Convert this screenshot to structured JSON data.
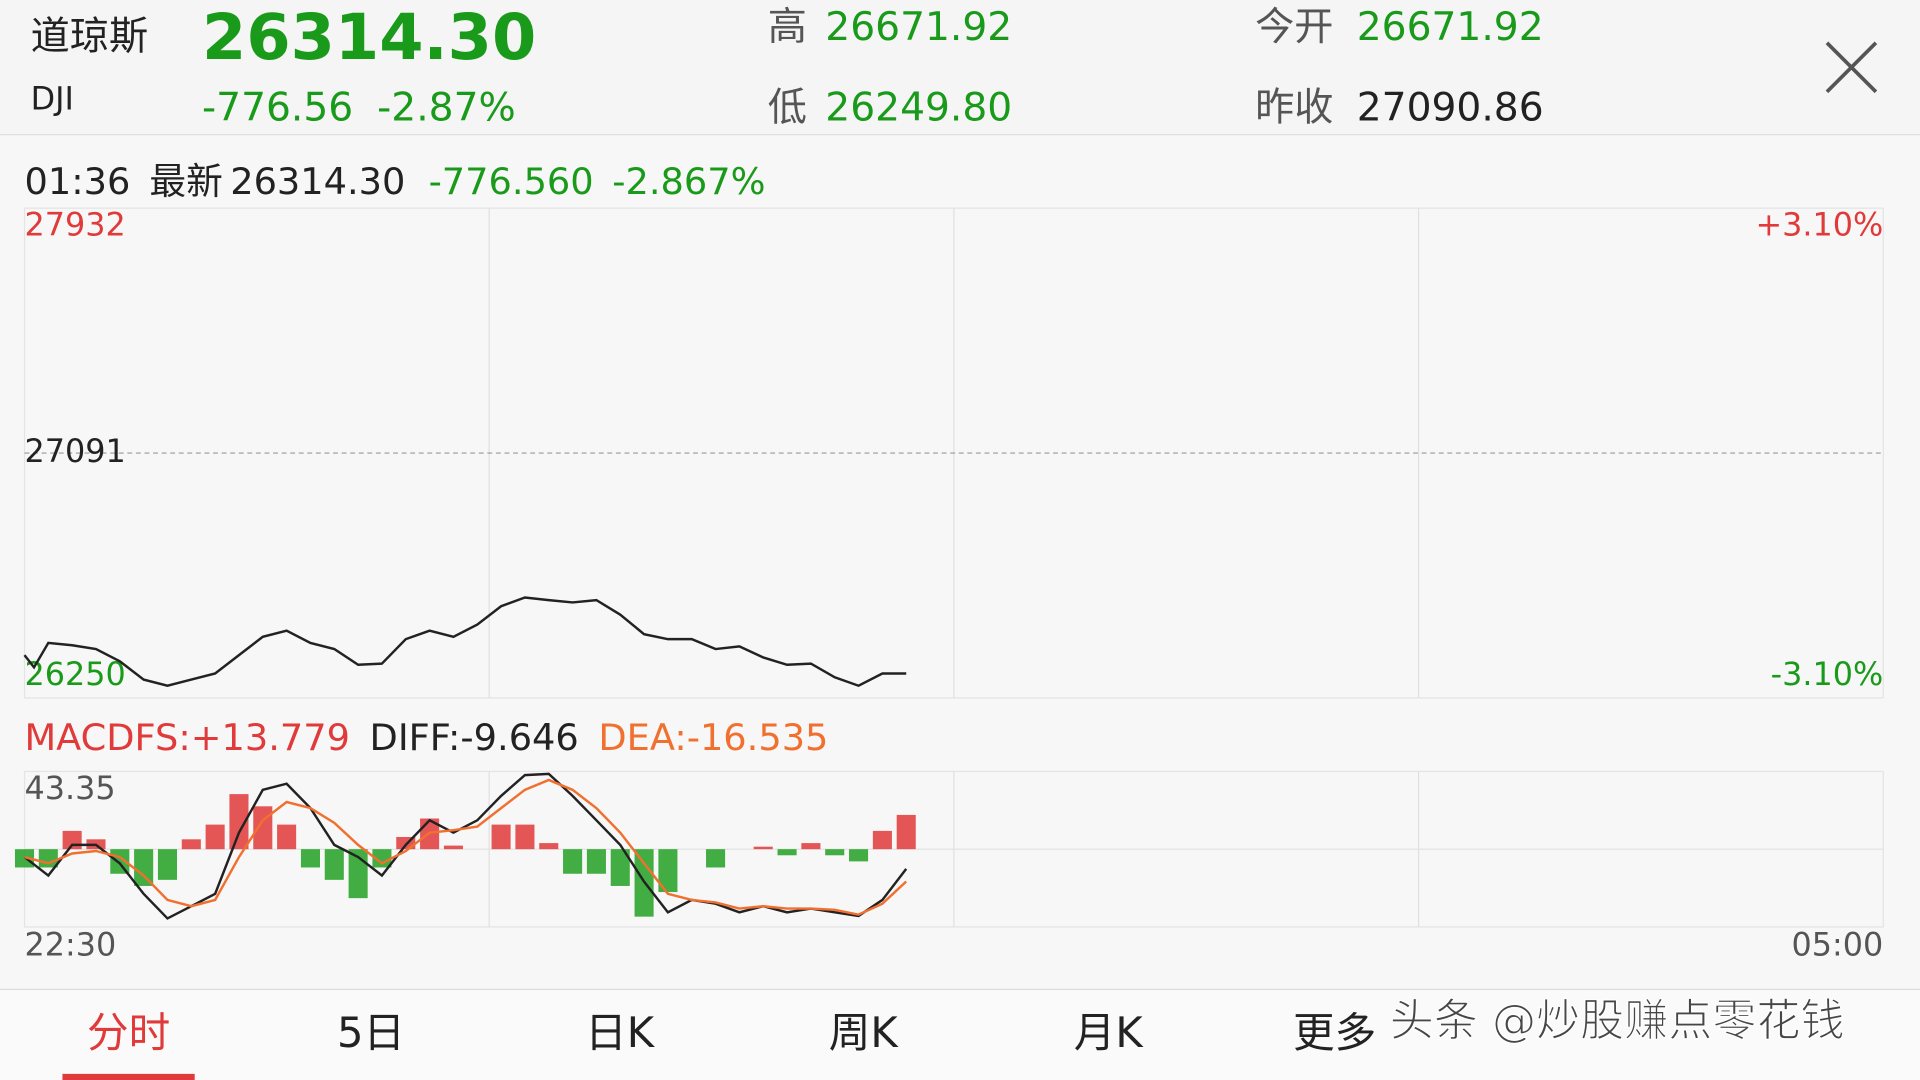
{
  "header": {
    "name": "道琼斯",
    "code": "DJI",
    "price": "26314.30",
    "change": "-776.56",
    "change_pct": "-2.87%",
    "high_label": "高",
    "high": "26671.92",
    "low_label": "低",
    "low": "26249.80",
    "open_label": "今开",
    "open": "26671.92",
    "prev_close_label": "昨收",
    "prev_close": "27090.86"
  },
  "info": {
    "time": "01:36",
    "latest_label": "最新",
    "latest": "26314.30",
    "change": "-776.560",
    "change_pct": "-2.867%"
  },
  "price_chart": {
    "type": "line",
    "color": "#222222",
    "x": [
      0,
      2,
      5,
      10,
      15,
      20,
      25,
      30,
      35,
      40,
      45,
      50,
      55,
      60,
      65,
      70,
      75,
      80,
      85,
      90,
      95,
      100,
      105,
      110,
      115,
      120,
      125,
      130,
      135,
      140,
      145,
      150,
      155,
      160,
      165,
      170,
      175,
      180,
      185
    ],
    "values": [
      26397,
      26355,
      26439,
      26431,
      26418,
      26376,
      26313,
      26292,
      26313,
      26334,
      26397,
      26460,
      26481,
      26439,
      26418,
      26364,
      26368,
      26452,
      26481,
      26460,
      26502,
      26565,
      26595,
      26586,
      26578,
      26586,
      26536,
      26469,
      26452,
      26452,
      26418,
      26427,
      26389,
      26364,
      26368,
      26321,
      26292,
      26334,
      26334
    ],
    "xlim": [
      0,
      390
    ],
    "ylim": [
      26250,
      27932
    ],
    "yticks": [
      26250,
      27091,
      27932
    ],
    "right_labels": [
      "-3.10%",
      "+3.10%"
    ],
    "grid": true
  },
  "macd_chart": {
    "type": "macd",
    "x": [
      0,
      5,
      10,
      15,
      20,
      25,
      30,
      35,
      40,
      45,
      50,
      55,
      60,
      65,
      70,
      75,
      80,
      85,
      90,
      95,
      100,
      105,
      110,
      115,
      120,
      125,
      130,
      135,
      140,
      145,
      150,
      155,
      160,
      165,
      170,
      175,
      180,
      185
    ],
    "xlim": [
      0,
      390
    ],
    "ylim": [
      -43.35,
      43.35
    ],
    "yticks": [
      43.35
    ],
    "xticks": [
      {
        "value": 0,
        "label": "22:30"
      },
      {
        "value": 390,
        "label": "05:00"
      }
    ],
    "series": [
      {
        "name": "MACDFS:+13.779",
        "kind": "bar",
        "color": "#e03a3a",
        "down_color": "#22a022",
        "values": [
          -10.2,
          -10.2,
          10.2,
          5.5,
          -13.7,
          -20.5,
          -17.1,
          5.5,
          13.7,
          30.7,
          23.9,
          13.7,
          -10.2,
          -17.1,
          -27.3,
          -10.2,
          6.8,
          17.1,
          2.0,
          0,
          13.7,
          13.7,
          3.4,
          -13.7,
          -13.7,
          -20.5,
          -37.6,
          -23.9,
          0,
          -10.2,
          0,
          1.4,
          -3.4,
          3.4,
          -3.4,
          -6.8,
          10.2,
          19.1
        ]
      },
      {
        "name": "DIFF:-9.646",
        "kind": "line",
        "color": "#222222",
        "values": [
          -4.4,
          -14.7,
          2.4,
          2.4,
          -7.9,
          -24.9,
          -38.6,
          -31.8,
          -24.9,
          9.2,
          33.1,
          36.5,
          22.9,
          2.4,
          -4.4,
          -14.7,
          2.4,
          16.1,
          9.2,
          16.1,
          29.7,
          41.3,
          42.0,
          29.7,
          16.1,
          2.4,
          -18.1,
          -35.2,
          -28.3,
          -30.4,
          -35.2,
          -31.8,
          -35.2,
          -33.1,
          -35.2,
          -37.2,
          -28.3,
          -11.0
        ]
      },
      {
        "name": "DEA:-16.535",
        "kind": "line",
        "color": "#f07030",
        "values": [
          -4.4,
          -7.9,
          -2.4,
          -1.0,
          -4.4,
          -14.7,
          -28.3,
          -31.8,
          -28.3,
          -4.4,
          16.1,
          26.3,
          22.9,
          14.7,
          2.4,
          -7.9,
          -1.0,
          9.2,
          10.6,
          12.6,
          22.9,
          33.1,
          38.6,
          33.1,
          22.9,
          9.2,
          -7.9,
          -24.9,
          -28.3,
          -29.7,
          -33.1,
          -31.8,
          -33.1,
          -33.1,
          -33.8,
          -36.5,
          -30.4,
          -18.0
        ]
      }
    ]
  },
  "tabs": [
    "分时",
    "5日",
    "日K",
    "周K",
    "月K",
    "更多"
  ],
  "active_tab": 0,
  "watermark": "头条 @炒股赚点零花钱"
}
